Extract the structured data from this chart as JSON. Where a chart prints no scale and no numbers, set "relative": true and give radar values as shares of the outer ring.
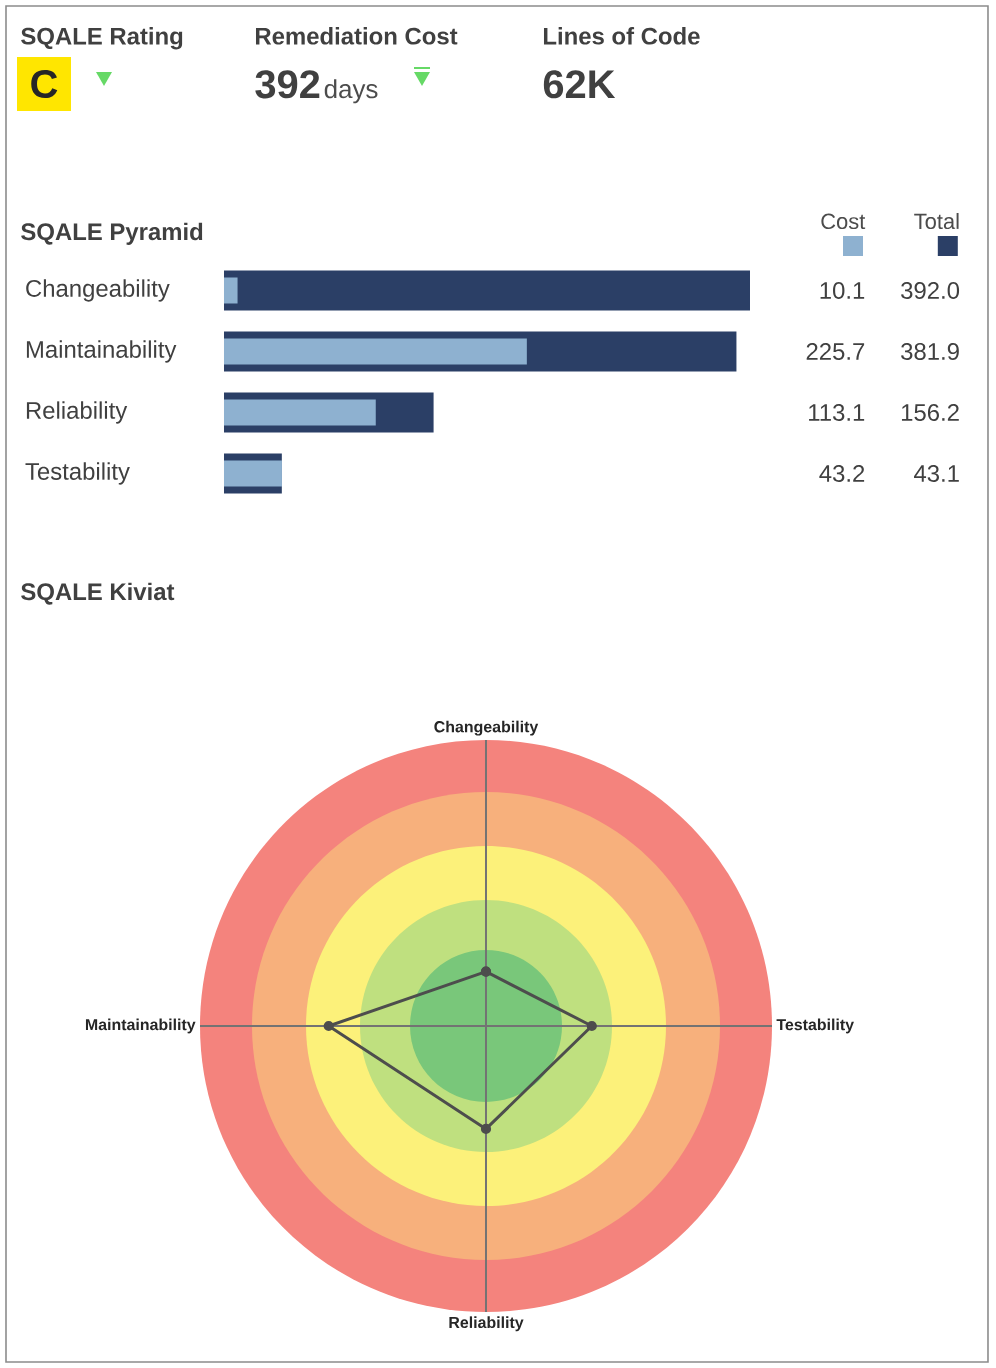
{
  "chart_data": [
    {
      "type": "other",
      "annotations": [
        "SQALE Rating",
        "C",
        "Remediation Cost",
        "392",
        "days",
        "Lines of Code",
        "62K"
      ]
    },
    {
      "type": "bar",
      "title": "SQALE Pyramid",
      "orientation": "horizontal",
      "categories": [
        "Changeability",
        "Maintainability",
        "Reliability",
        "Testability"
      ],
      "legend": "top right",
      "series": [
        {
          "name": "Total",
          "color": "#2b3f66",
          "values": [
            392.0,
            381.9,
            156.2,
            43.1
          ],
          "value_labels": [
            "392.0",
            "381.9",
            "156.2",
            "43.1"
          ]
        },
        {
          "name": "Cost",
          "color": "#8eb1d0",
          "values": [
            10.1,
            225.7,
            113.1,
            43.2
          ],
          "value_labels": [
            "10.1",
            "225.7",
            "113.1",
            "43.2"
          ]
        }
      ]
    },
    {
      "type": "radar",
      "title": "SQALE Kiviat",
      "categories": [
        "Changeability",
        "Testability",
        "Reliability",
        "Maintainability"
      ],
      "relative": true,
      "marker": "circle",
      "series": [
        {
          "color": "#4d4d4d",
          "values": [
            0.19,
            0.37,
            0.36,
            0.55
          ]
        }
      ]
    }
  ]
}
